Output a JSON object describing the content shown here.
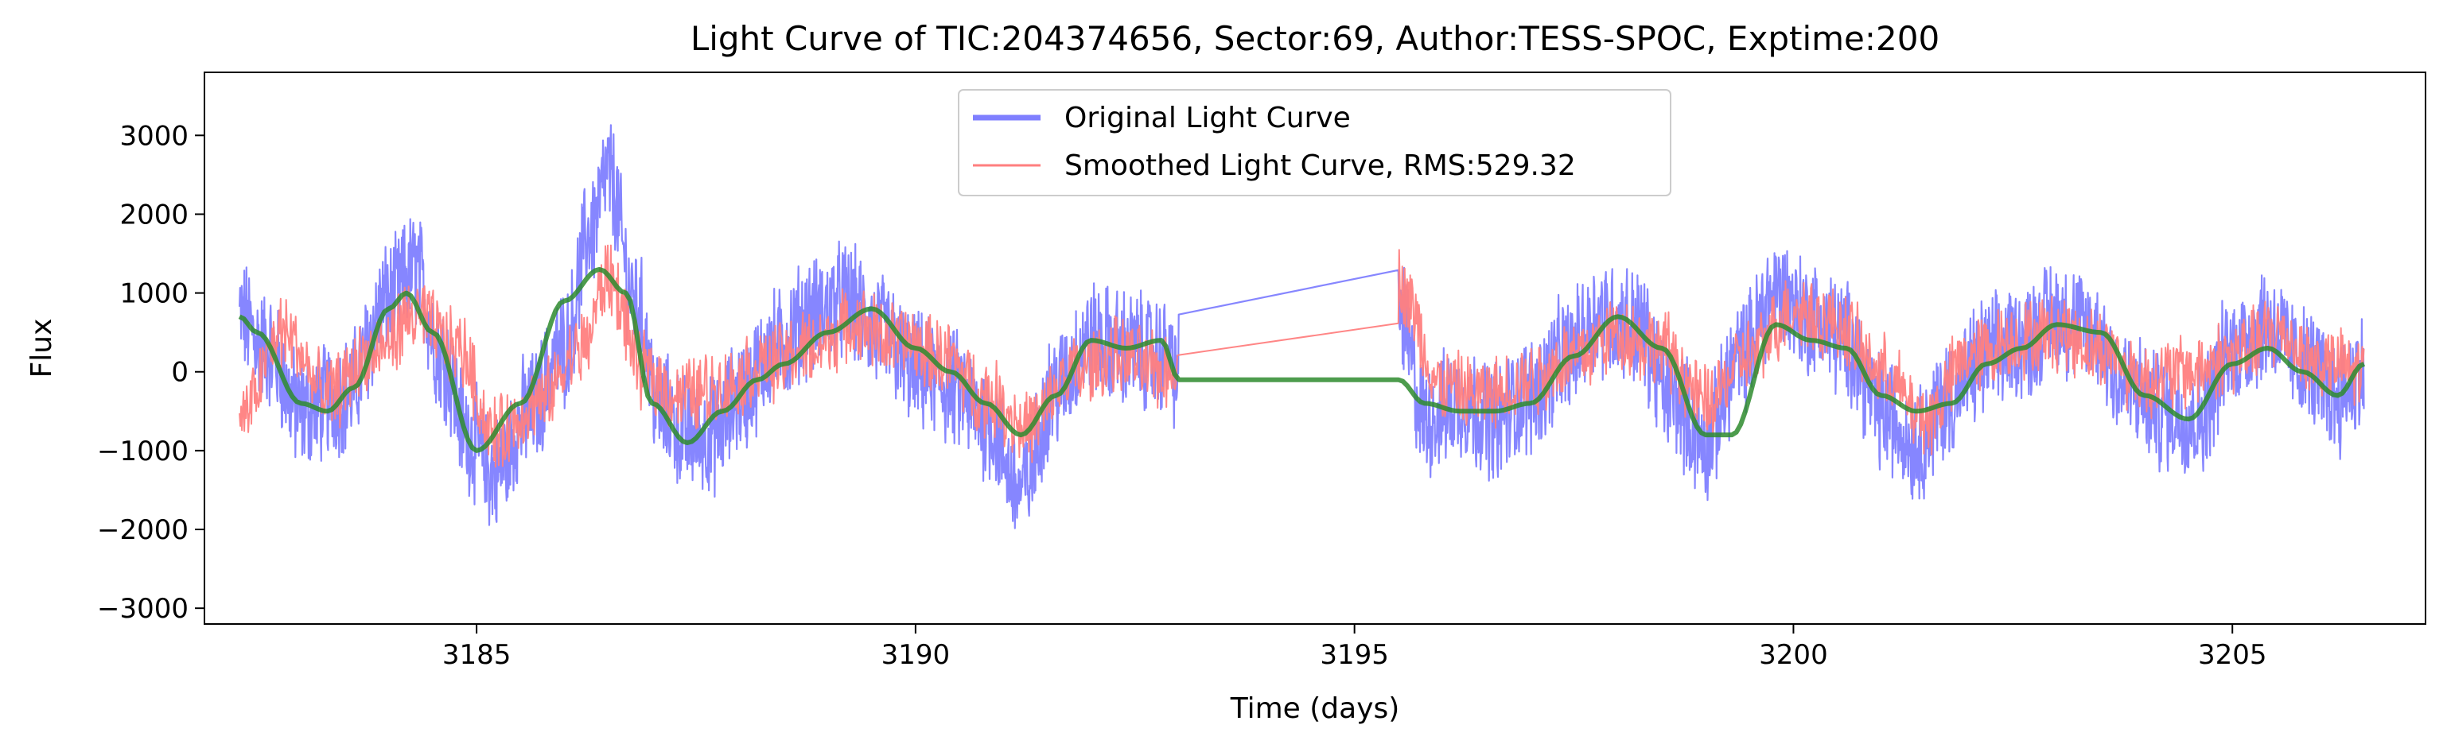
{
  "chart_data": {
    "type": "line",
    "title": "Light Curve of TIC:204374656, Sector:69, Author:TESS-SPOC, Exptime:200",
    "xlabel": "Time (days)",
    "ylabel": "Flux",
    "xlim": [
      3181.9,
      3207.2
    ],
    "ylim": [
      -3200,
      3800
    ],
    "xticks": [
      3185,
      3190,
      3195,
      3200,
      3205
    ],
    "yticks": [
      -3000,
      -2000,
      -1000,
      0,
      1000,
      2000,
      3000
    ],
    "ytick_labels": [
      "−3000",
      "−2000",
      "−1000",
      "0",
      "1000",
      "2000",
      "3000"
    ],
    "grid": false,
    "legend_position": "top-center",
    "series": [
      {
        "name": "Original Light Curve",
        "color": "#7f7fff",
        "style": "noisy band, dense cadence",
        "segments": [
          {
            "x": [
              3182.3,
              3182.6,
              3183.0,
              3183.5,
              3184.0,
              3184.3,
              3184.6,
              3184.9,
              3185.2,
              3185.6,
              3186.0,
              3186.3,
              3186.5,
              3186.8,
              3187.1,
              3187.4,
              3187.7,
              3188.0,
              3188.4,
              3188.8,
              3189.2,
              3189.6,
              3190.0,
              3190.4,
              3190.8,
              3191.2,
              3191.6,
              3192.0,
              3192.4,
              3192.8,
              3193.0
            ],
            "y": [
              700,
              300,
              -500,
              -300,
              900,
              1300,
              200,
              -800,
              -1300,
              -500,
              300,
              1800,
              2500,
              900,
              -500,
              -800,
              -800,
              -300,
              300,
              700,
              900,
              500,
              0,
              -200,
              -600,
              -1500,
              -200,
              400,
              300,
              200,
              0
            ]
          },
          {
            "x": [
              3195.5,
              3195.8,
              3196.2,
              3196.6,
              3197.0,
              3197.4,
              3197.8,
              3198.2,
              3198.6,
              3199.0,
              3199.4,
              3199.8,
              3200.2,
              3200.6,
              3201.0,
              3201.4,
              3201.8,
              3202.2,
              3202.6,
              3203.0,
              3203.4,
              3203.8,
              3204.2,
              3204.6,
              3205.0,
              3205.4,
              3205.8,
              3206.2,
              3206.5
            ],
            "y": [
              800,
              -600,
              -400,
              -600,
              -300,
              200,
              700,
              600,
              -300,
              -900,
              200,
              1000,
              700,
              400,
              -500,
              -900,
              -300,
              200,
              400,
              700,
              500,
              -200,
              -500,
              -600,
              300,
              600,
              100,
              -300,
              0
            ]
          }
        ]
      },
      {
        "name": "Smoothed Light Curve, RMS:529.32",
        "color": "#ff7f7f",
        "style": "thin noisy line",
        "segments": [
          {
            "x": [
              3182.3,
              3182.8,
              3183.3,
              3183.8,
              3184.3,
              3184.8,
              3185.2,
              3185.7,
              3186.2,
              3186.5,
              3186.9,
              3187.3,
              3187.8,
              3188.3,
              3188.8,
              3189.3,
              3189.8,
              3190.3,
              3190.8,
              3191.3,
              3191.8,
              3192.3,
              3192.8,
              3193.0
            ],
            "y": [
              -600,
              500,
              -300,
              200,
              700,
              300,
              -800,
              -400,
              300,
              1200,
              0,
              -300,
              -200,
              100,
              300,
              600,
              400,
              200,
              -300,
              -700,
              0,
              200,
              0,
              100
            ]
          },
          {
            "x": [
              3195.5,
              3196.0,
              3196.5,
              3197.0,
              3197.5,
              3198.0,
              3198.5,
              3199.0,
              3199.5,
              3200.0,
              3200.5,
              3201.0,
              3201.5,
              3202.0,
              3202.5,
              3203.0,
              3203.5,
              3204.0,
              3204.5,
              3205.0,
              3205.5,
              3206.0,
              3206.5
            ],
            "y": [
              1100,
              -200,
              -300,
              -100,
              200,
              500,
              300,
              -400,
              200,
              800,
              600,
              0,
              -600,
              200,
              400,
              500,
              300,
              -100,
              0,
              200,
              500,
              100,
              0
            ]
          }
        ]
      },
      {
        "name": "",
        "color": "#2e8b2e",
        "style": "smooth trend",
        "segments": [
          {
            "x": [
              3182.3,
              3182.5,
              3183.0,
              3183.3,
              3183.6,
              3184.0,
              3184.2,
              3184.5,
              3185.0,
              3185.5,
              3186.0,
              3186.4,
              3186.7,
              3187.0,
              3187.4,
              3187.8,
              3188.2,
              3188.5,
              3189.0,
              3189.5,
              3190.0,
              3190.4,
              3190.8,
              3191.2,
              3191.6,
              3192.0,
              3192.4,
              3192.8,
              3193.0,
              3195.5,
              3195.8,
              3196.2,
              3196.6,
              3197.0,
              3197.5,
              3198.0,
              3198.5,
              3199.0,
              3199.3,
              3199.8,
              3200.2,
              3200.6,
              3201.0,
              3201.4,
              3201.8,
              3202.2,
              3202.6,
              3203.0,
              3203.5,
              3204.0,
              3204.5,
              3205.0,
              3205.4,
              3205.8,
              3206.2,
              3206.5
            ],
            "y": [
              700,
              500,
              -400,
              -500,
              -200,
              800,
              1000,
              500,
              -1000,
              -400,
              900,
              1300,
              1000,
              -400,
              -900,
              -500,
              -100,
              100,
              500,
              800,
              300,
              0,
              -400,
              -800,
              -300,
              400,
              300,
              400,
              -100,
              -100,
              -400,
              -500,
              -500,
              -400,
              200,
              700,
              300,
              -800,
              -800,
              600,
              400,
              300,
              -300,
              -500,
              -400,
              100,
              300,
              600,
              500,
              -300,
              -600,
              100,
              300,
              0,
              -300,
              100
            ]
          }
        ]
      }
    ]
  }
}
